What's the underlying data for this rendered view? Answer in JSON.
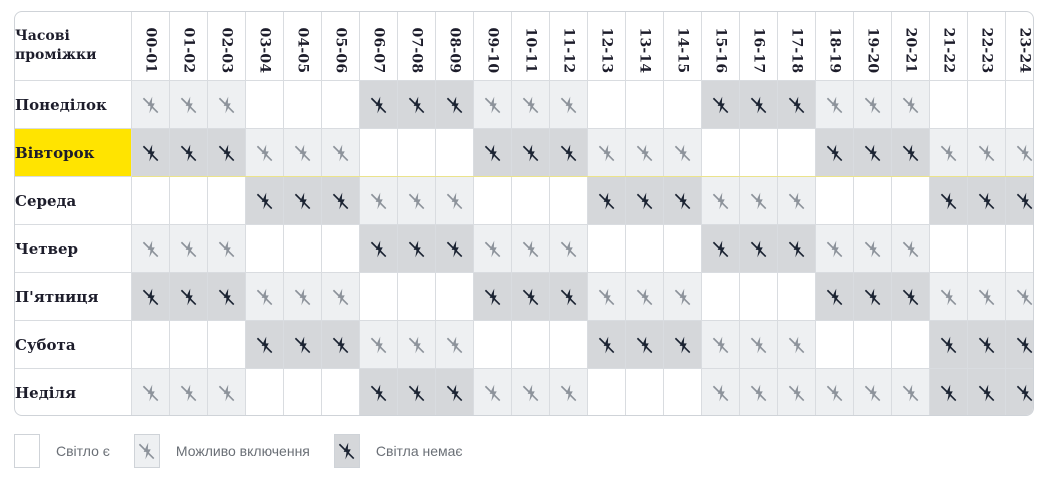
{
  "header": {
    "corner_label": "Часові\nпроміжки"
  },
  "hours": [
    "00-01",
    "01-02",
    "02-03",
    "03-04",
    "04-05",
    "05-06",
    "06-07",
    "07-08",
    "08-09",
    "09-10",
    "10-11",
    "11-12",
    "12-13",
    "13-14",
    "14-15",
    "15-16",
    "16-17",
    "17-18",
    "18-19",
    "19-20",
    "20-21",
    "21-22",
    "22-23",
    "23-24"
  ],
  "days": [
    {
      "label": "Понеділок",
      "today": false,
      "slots": [
        "maybe",
        "maybe",
        "maybe",
        "yes",
        "yes",
        "yes",
        "no",
        "no",
        "no",
        "maybe",
        "maybe",
        "maybe",
        "yes",
        "yes",
        "yes",
        "no",
        "no",
        "no",
        "maybe",
        "maybe",
        "maybe",
        "yes",
        "yes",
        "yes"
      ]
    },
    {
      "label": "Вівторок",
      "today": true,
      "slots": [
        "no",
        "no",
        "no",
        "maybe",
        "maybe",
        "maybe",
        "yes",
        "yes",
        "yes",
        "no",
        "no",
        "no",
        "maybe",
        "maybe",
        "maybe",
        "yes",
        "yes",
        "yes",
        "no",
        "no",
        "no",
        "maybe",
        "maybe",
        "maybe"
      ]
    },
    {
      "label": "Середа",
      "today": false,
      "slots": [
        "yes",
        "yes",
        "yes",
        "no",
        "no",
        "no",
        "maybe",
        "maybe",
        "maybe",
        "yes",
        "yes",
        "yes",
        "no",
        "no",
        "no",
        "maybe",
        "maybe",
        "maybe",
        "yes",
        "yes",
        "yes",
        "no",
        "no",
        "no"
      ]
    },
    {
      "label": "Четвер",
      "today": false,
      "slots": [
        "maybe",
        "maybe",
        "maybe",
        "yes",
        "yes",
        "yes",
        "no",
        "no",
        "no",
        "maybe",
        "maybe",
        "maybe",
        "yes",
        "yes",
        "yes",
        "no",
        "no",
        "no",
        "maybe",
        "maybe",
        "maybe",
        "yes",
        "yes",
        "yes"
      ]
    },
    {
      "label": "П'ятниця",
      "today": false,
      "slots": [
        "no",
        "no",
        "no",
        "maybe",
        "maybe",
        "maybe",
        "yes",
        "yes",
        "yes",
        "no",
        "no",
        "no",
        "maybe",
        "maybe",
        "maybe",
        "yes",
        "yes",
        "yes",
        "no",
        "no",
        "no",
        "maybe",
        "maybe",
        "maybe"
      ]
    },
    {
      "label": "Субота",
      "today": false,
      "slots": [
        "yes",
        "yes",
        "yes",
        "no",
        "no",
        "no",
        "maybe",
        "maybe",
        "maybe",
        "yes",
        "yes",
        "yes",
        "no",
        "no",
        "no",
        "maybe",
        "maybe",
        "maybe",
        "yes",
        "yes",
        "yes",
        "no",
        "no",
        "no"
      ]
    },
    {
      "label": "Неділя",
      "today": false,
      "slots": [
        "maybe",
        "maybe",
        "maybe",
        "yes",
        "yes",
        "yes",
        "no",
        "no",
        "no",
        "maybe",
        "maybe",
        "maybe",
        "yes",
        "yes",
        "yes",
        "maybe",
        "maybe",
        "maybe",
        "maybe",
        "maybe",
        "maybe",
        "no",
        "no",
        "no"
      ]
    }
  ],
  "legend": {
    "yes_label": "Світло є",
    "maybe_label": "Можливо включення",
    "no_label": "Світла немає"
  },
  "icons": {
    "maybe": "no-power-icon",
    "no": "no-power-icon"
  },
  "colors": {
    "today_highlight": "#ffe400",
    "maybe_bg": "#eef0f2",
    "no_bg": "#d5d7da",
    "icon_dark": "#1c2433",
    "icon_grey": "#8d939b"
  }
}
